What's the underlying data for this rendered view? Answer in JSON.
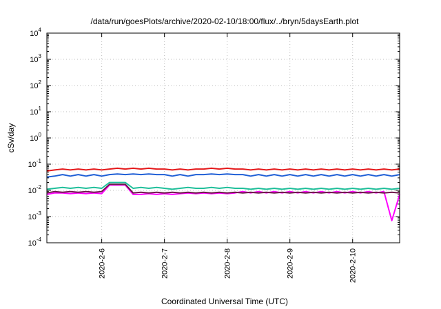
{
  "chart_data": {
    "type": "line",
    "title": "/data/run/goesPlots/archive/2020-02-10/18:00/flux/../bryn/5daysEarth.plot",
    "xlabel": "Coordinated Universal Time (UTC)",
    "ylabel": "cSv/day",
    "x_range": [
      "2020-02-05 03:00",
      "2020-02-10 18:00"
    ],
    "x_ticks": [
      "2020-2-6",
      "2020-2-7",
      "2020-2-8",
      "2020-2-9",
      "2020-2-10"
    ],
    "y_scale": "log",
    "ylim": [
      0.0001,
      10000
    ],
    "y_ticks": [
      {
        "base": "10",
        "exp": "-4"
      },
      {
        "base": "10",
        "exp": "-3"
      },
      {
        "base": "10",
        "exp": "-2"
      },
      {
        "base": "10",
        "exp": "-1"
      },
      {
        "base": "10",
        "exp": "0"
      },
      {
        "base": "10",
        "exp": "1"
      },
      {
        "base": "10",
        "exp": "2"
      },
      {
        "base": "10",
        "exp": "3"
      },
      {
        "base": "10",
        "exp": "4"
      }
    ],
    "grid": true,
    "legend": "none",
    "series": [
      {
        "color": "#e41a1c",
        "x": [
          "2020-02-05 03:00",
          "2020-02-05 06:00",
          "2020-02-05 09:00",
          "2020-02-05 12:00",
          "2020-02-05 15:00",
          "2020-02-05 18:00",
          "2020-02-05 21:00",
          "2020-02-06 00:00",
          "2020-02-06 03:00",
          "2020-02-06 06:00",
          "2020-02-06 09:00",
          "2020-02-06 12:00",
          "2020-02-06 15:00",
          "2020-02-06 18:00",
          "2020-02-06 21:00",
          "2020-02-07 00:00",
          "2020-02-07 03:00",
          "2020-02-07 06:00",
          "2020-02-07 09:00",
          "2020-02-07 12:00",
          "2020-02-07 15:00",
          "2020-02-07 18:00",
          "2020-02-07 21:00",
          "2020-02-08 00:00",
          "2020-02-08 03:00",
          "2020-02-08 06:00",
          "2020-02-08 09:00",
          "2020-02-08 12:00",
          "2020-02-08 15:00",
          "2020-02-08 18:00",
          "2020-02-08 21:00",
          "2020-02-09 00:00",
          "2020-02-09 03:00",
          "2020-02-09 06:00",
          "2020-02-09 09:00",
          "2020-02-09 12:00",
          "2020-02-09 15:00",
          "2020-02-09 18:00",
          "2020-02-09 21:00",
          "2020-02-10 00:00",
          "2020-02-10 03:00",
          "2020-02-10 06:00",
          "2020-02-10 09:00",
          "2020-02-10 12:00",
          "2020-02-10 15:00",
          "2020-02-10 18:00"
        ],
        "y": [
          0.055,
          0.06,
          0.065,
          0.06,
          0.065,
          0.06,
          0.065,
          0.06,
          0.065,
          0.07,
          0.065,
          0.07,
          0.065,
          0.07,
          0.065,
          0.065,
          0.06,
          0.065,
          0.06,
          0.065,
          0.065,
          0.07,
          0.065,
          0.07,
          0.065,
          0.065,
          0.06,
          0.065,
          0.06,
          0.065,
          0.06,
          0.065,
          0.06,
          0.065,
          0.06,
          0.065,
          0.06,
          0.065,
          0.06,
          0.065,
          0.06,
          0.065,
          0.06,
          0.065,
          0.06,
          0.065
        ]
      },
      {
        "color": "#1f5fd6",
        "x": [
          "2020-02-05 03:00",
          "2020-02-05 06:00",
          "2020-02-05 09:00",
          "2020-02-05 12:00",
          "2020-02-05 15:00",
          "2020-02-05 18:00",
          "2020-02-05 21:00",
          "2020-02-06 00:00",
          "2020-02-06 03:00",
          "2020-02-06 06:00",
          "2020-02-06 09:00",
          "2020-02-06 12:00",
          "2020-02-06 15:00",
          "2020-02-06 18:00",
          "2020-02-06 21:00",
          "2020-02-07 00:00",
          "2020-02-07 03:00",
          "2020-02-07 06:00",
          "2020-02-07 09:00",
          "2020-02-07 12:00",
          "2020-02-07 15:00",
          "2020-02-07 18:00",
          "2020-02-07 21:00",
          "2020-02-08 00:00",
          "2020-02-08 03:00",
          "2020-02-08 06:00",
          "2020-02-08 09:00",
          "2020-02-08 12:00",
          "2020-02-08 15:00",
          "2020-02-08 18:00",
          "2020-02-08 21:00",
          "2020-02-09 00:00",
          "2020-02-09 03:00",
          "2020-02-09 06:00",
          "2020-02-09 09:00",
          "2020-02-09 12:00",
          "2020-02-09 15:00",
          "2020-02-09 18:00",
          "2020-02-09 21:00",
          "2020-02-10 00:00",
          "2020-02-10 03:00",
          "2020-02-10 06:00",
          "2020-02-10 09:00",
          "2020-02-10 12:00",
          "2020-02-10 15:00",
          "2020-02-10 18:00"
        ],
        "y": [
          0.032,
          0.035,
          0.04,
          0.035,
          0.04,
          0.035,
          0.04,
          0.035,
          0.04,
          0.042,
          0.04,
          0.042,
          0.04,
          0.042,
          0.04,
          0.04,
          0.035,
          0.04,
          0.035,
          0.04,
          0.04,
          0.042,
          0.04,
          0.042,
          0.04,
          0.04,
          0.035,
          0.04,
          0.035,
          0.04,
          0.035,
          0.04,
          0.035,
          0.04,
          0.035,
          0.04,
          0.035,
          0.04,
          0.035,
          0.04,
          0.035,
          0.04,
          0.035,
          0.04,
          0.035,
          0.04
        ]
      },
      {
        "color": "#1fbf9a",
        "x": [
          "2020-02-05 03:00",
          "2020-02-05 06:00",
          "2020-02-05 09:00",
          "2020-02-05 12:00",
          "2020-02-05 15:00",
          "2020-02-05 18:00",
          "2020-02-05 21:00",
          "2020-02-06 00:00",
          "2020-02-06 03:00",
          "2020-02-06 06:00",
          "2020-02-06 09:00",
          "2020-02-06 12:00",
          "2020-02-06 15:00",
          "2020-02-06 18:00",
          "2020-02-06 21:00",
          "2020-02-07 00:00",
          "2020-02-07 03:00",
          "2020-02-07 06:00",
          "2020-02-07 09:00",
          "2020-02-07 12:00",
          "2020-02-07 15:00",
          "2020-02-07 18:00",
          "2020-02-07 21:00",
          "2020-02-08 00:00",
          "2020-02-08 03:00",
          "2020-02-08 06:00",
          "2020-02-08 09:00",
          "2020-02-08 12:00",
          "2020-02-08 15:00",
          "2020-02-08 18:00",
          "2020-02-08 21:00",
          "2020-02-09 00:00",
          "2020-02-09 03:00",
          "2020-02-09 06:00",
          "2020-02-09 09:00",
          "2020-02-09 12:00",
          "2020-02-09 15:00",
          "2020-02-09 18:00",
          "2020-02-09 21:00",
          "2020-02-10 00:00",
          "2020-02-10 03:00",
          "2020-02-10 06:00",
          "2020-02-10 09:00",
          "2020-02-10 12:00",
          "2020-02-10 15:00",
          "2020-02-10 18:00"
        ],
        "y": [
          0.011,
          0.012,
          0.013,
          0.012,
          0.013,
          0.012,
          0.013,
          0.012,
          0.02,
          0.02,
          0.02,
          0.012,
          0.013,
          0.012,
          0.013,
          0.012,
          0.011,
          0.012,
          0.013,
          0.012,
          0.012,
          0.013,
          0.012,
          0.013,
          0.012,
          0.012,
          0.011,
          0.012,
          0.011,
          0.012,
          0.011,
          0.012,
          0.011,
          0.012,
          0.011,
          0.012,
          0.011,
          0.012,
          0.011,
          0.012,
          0.011,
          0.012,
          0.011,
          0.012,
          0.011,
          0.012
        ]
      },
      {
        "color": "#ff00ff",
        "x": [
          "2020-02-05 03:00",
          "2020-02-05 06:00",
          "2020-02-05 09:00",
          "2020-02-05 12:00",
          "2020-02-05 15:00",
          "2020-02-05 18:00",
          "2020-02-05 21:00",
          "2020-02-06 00:00",
          "2020-02-06 03:00",
          "2020-02-06 06:00",
          "2020-02-06 09:00",
          "2020-02-06 12:00",
          "2020-02-06 15:00",
          "2020-02-06 18:00",
          "2020-02-06 21:00",
          "2020-02-07 00:00",
          "2020-02-07 03:00",
          "2020-02-07 06:00",
          "2020-02-07 09:00",
          "2020-02-07 12:00",
          "2020-02-07 15:00",
          "2020-02-07 18:00",
          "2020-02-07 21:00",
          "2020-02-08 00:00",
          "2020-02-08 03:00",
          "2020-02-08 06:00",
          "2020-02-08 09:00",
          "2020-02-08 12:00",
          "2020-02-08 15:00",
          "2020-02-08 18:00",
          "2020-02-08 21:00",
          "2020-02-09 00:00",
          "2020-02-09 03:00",
          "2020-02-09 06:00",
          "2020-02-09 09:00",
          "2020-02-09 12:00",
          "2020-02-09 15:00",
          "2020-02-09 18:00",
          "2020-02-09 21:00",
          "2020-02-10 00:00",
          "2020-02-10 03:00",
          "2020-02-10 06:00",
          "2020-02-10 09:00",
          "2020-02-10 12:00",
          "2020-02-10 15:00",
          "2020-02-10 18:00"
        ],
        "y": [
          0.007,
          0.008,
          0.008,
          0.0075,
          0.008,
          0.0075,
          0.008,
          0.0075,
          0.016,
          0.016,
          0.016,
          0.007,
          0.007,
          0.0075,
          0.007,
          0.0075,
          0.007,
          0.0075,
          0.008,
          0.0075,
          0.008,
          0.0075,
          0.008,
          0.0075,
          0.008,
          0.009,
          0.008,
          0.009,
          0.008,
          0.009,
          0.008,
          0.009,
          0.008,
          0.009,
          0.008,
          0.009,
          0.008,
          0.009,
          0.008,
          0.009,
          0.008,
          0.009,
          0.008,
          0.009,
          0.0007,
          0.007
        ]
      },
      {
        "color": "#6e1a4a",
        "x": [
          "2020-02-05 03:00",
          "2020-02-05 06:00",
          "2020-02-05 09:00",
          "2020-02-05 12:00",
          "2020-02-05 15:00",
          "2020-02-05 18:00",
          "2020-02-05 21:00",
          "2020-02-06 00:00",
          "2020-02-06 03:00",
          "2020-02-06 06:00",
          "2020-02-06 09:00",
          "2020-02-06 12:00",
          "2020-02-06 15:00",
          "2020-02-06 18:00",
          "2020-02-06 21:00",
          "2020-02-07 00:00",
          "2020-02-07 03:00",
          "2020-02-07 06:00",
          "2020-02-07 09:00",
          "2020-02-07 12:00",
          "2020-02-07 15:00",
          "2020-02-07 18:00",
          "2020-02-07 21:00",
          "2020-02-08 00:00",
          "2020-02-08 03:00",
          "2020-02-08 06:00",
          "2020-02-08 09:00",
          "2020-02-08 12:00",
          "2020-02-08 15:00",
          "2020-02-08 18:00",
          "2020-02-08 21:00",
          "2020-02-09 00:00",
          "2020-02-09 03:00",
          "2020-02-09 06:00",
          "2020-02-09 09:00",
          "2020-02-09 12:00",
          "2020-02-09 15:00",
          "2020-02-09 18:00",
          "2020-02-09 21:00",
          "2020-02-10 00:00",
          "2020-02-10 03:00",
          "2020-02-10 06:00",
          "2020-02-10 09:00",
          "2020-02-10 12:00",
          "2020-02-10 15:00",
          "2020-02-10 18:00"
        ],
        "y": [
          0.008,
          0.009,
          0.0085,
          0.009,
          0.0085,
          0.009,
          0.0085,
          0.009,
          0.017,
          0.017,
          0.017,
          0.008,
          0.0085,
          0.008,
          0.0085,
          0.008,
          0.0085,
          0.008,
          0.0085,
          0.008,
          0.0085,
          0.008,
          0.0085,
          0.008,
          0.0085,
          0.008,
          0.0085,
          0.008,
          0.0085,
          0.008,
          0.0085,
          0.008,
          0.0085,
          0.008,
          0.0085,
          0.008,
          0.0085,
          0.008,
          0.0085,
          0.008,
          0.0085,
          0.008,
          0.0085,
          0.008,
          0.0085,
          0.008
        ]
      }
    ]
  }
}
